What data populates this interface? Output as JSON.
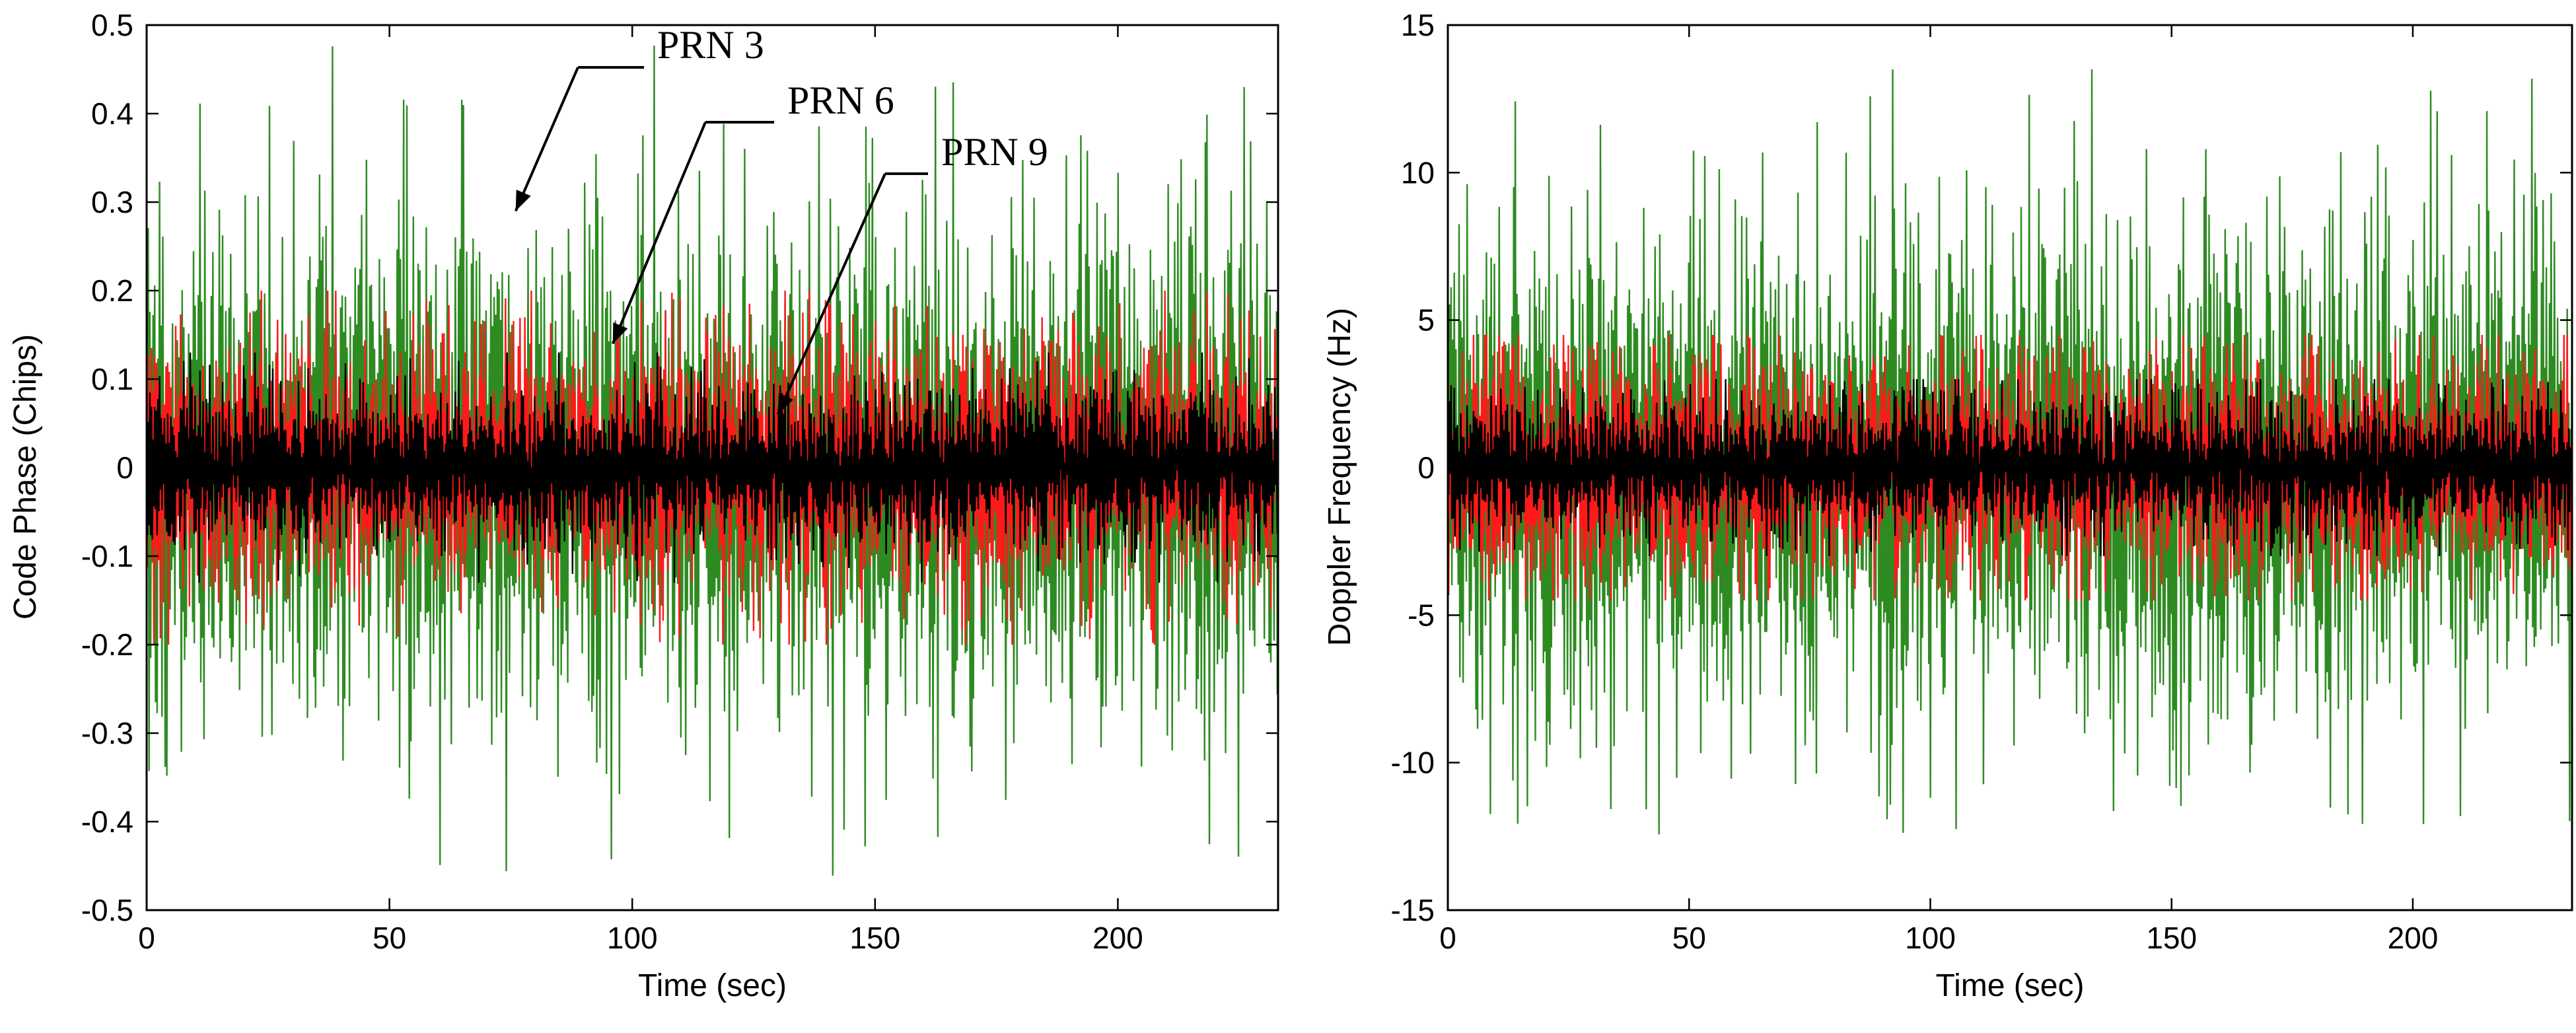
{
  "chart_data": [
    {
      "type": "line",
      "id": "code-phase",
      "title": "",
      "xlabel": "Time (sec)",
      "ylabel": "Code Phase (Chips)",
      "xlim": [
        0,
        233
      ],
      "ylim": [
        -0.5,
        0.5
      ],
      "xticks": [
        "0",
        "50",
        "100",
        "150",
        "200"
      ],
      "yticks": [
        "0.5",
        "0.4",
        "0.3",
        "0.2",
        "0.1",
        "0",
        "-0.1",
        "-0.2",
        "-0.3",
        "-0.4",
        "-0.5"
      ],
      "grid": false,
      "x_range": [
        0,
        233
      ],
      "series": [
        {
          "name": "PRN 3",
          "color": "#2e8b22",
          "mean": 0.0,
          "typical_amplitude": 0.17,
          "peak_amplitude": 0.48
        },
        {
          "name": "PRN 6",
          "color": "#ff1a1a",
          "mean": 0.0,
          "typical_amplitude": 0.09,
          "peak_amplitude": 0.2
        },
        {
          "name": "PRN 9",
          "color": "#000000",
          "mean": 0.0,
          "typical_amplitude": 0.055,
          "peak_amplitude": 0.13
        }
      ],
      "annotations": [
        {
          "text": "PRN 3",
          "series": "PRN 3",
          "points_to": {
            "x": 76,
            "y": 0.29
          }
        },
        {
          "text": "PRN 6",
          "series": "PRN 6",
          "points_to": {
            "x": 96,
            "y": 0.14
          }
        },
        {
          "text": "PRN 9",
          "series": "PRN 9",
          "points_to": {
            "x": 130,
            "y": 0.06
          }
        }
      ]
    },
    {
      "type": "line",
      "id": "doppler",
      "title": "",
      "xlabel": "Time (sec)",
      "ylabel": "Doppler Frequency (Hz)",
      "xlim": [
        0,
        233
      ],
      "ylim": [
        -15,
        15
      ],
      "xticks": [
        "0",
        "50",
        "100",
        "150",
        "200"
      ],
      "yticks": [
        "15",
        "10",
        "5",
        "0",
        "-5",
        "-10",
        "-15"
      ],
      "grid": false,
      "x_range": [
        0,
        233
      ],
      "series": [
        {
          "name": "PRN 3",
          "color": "#2e8b22",
          "mean": 0.0,
          "typical_amplitude": 5.0,
          "peak_amplitude": 13.5
        },
        {
          "name": "PRN 6",
          "color": "#ff1a1a",
          "mean": 0.0,
          "typical_amplitude": 2.4,
          "peak_amplitude": 4.5
        },
        {
          "name": "PRN 9",
          "color": "#000000",
          "mean": 0.0,
          "typical_amplitude": 1.4,
          "peak_amplitude": 3.0
        }
      ],
      "annotations": []
    }
  ]
}
